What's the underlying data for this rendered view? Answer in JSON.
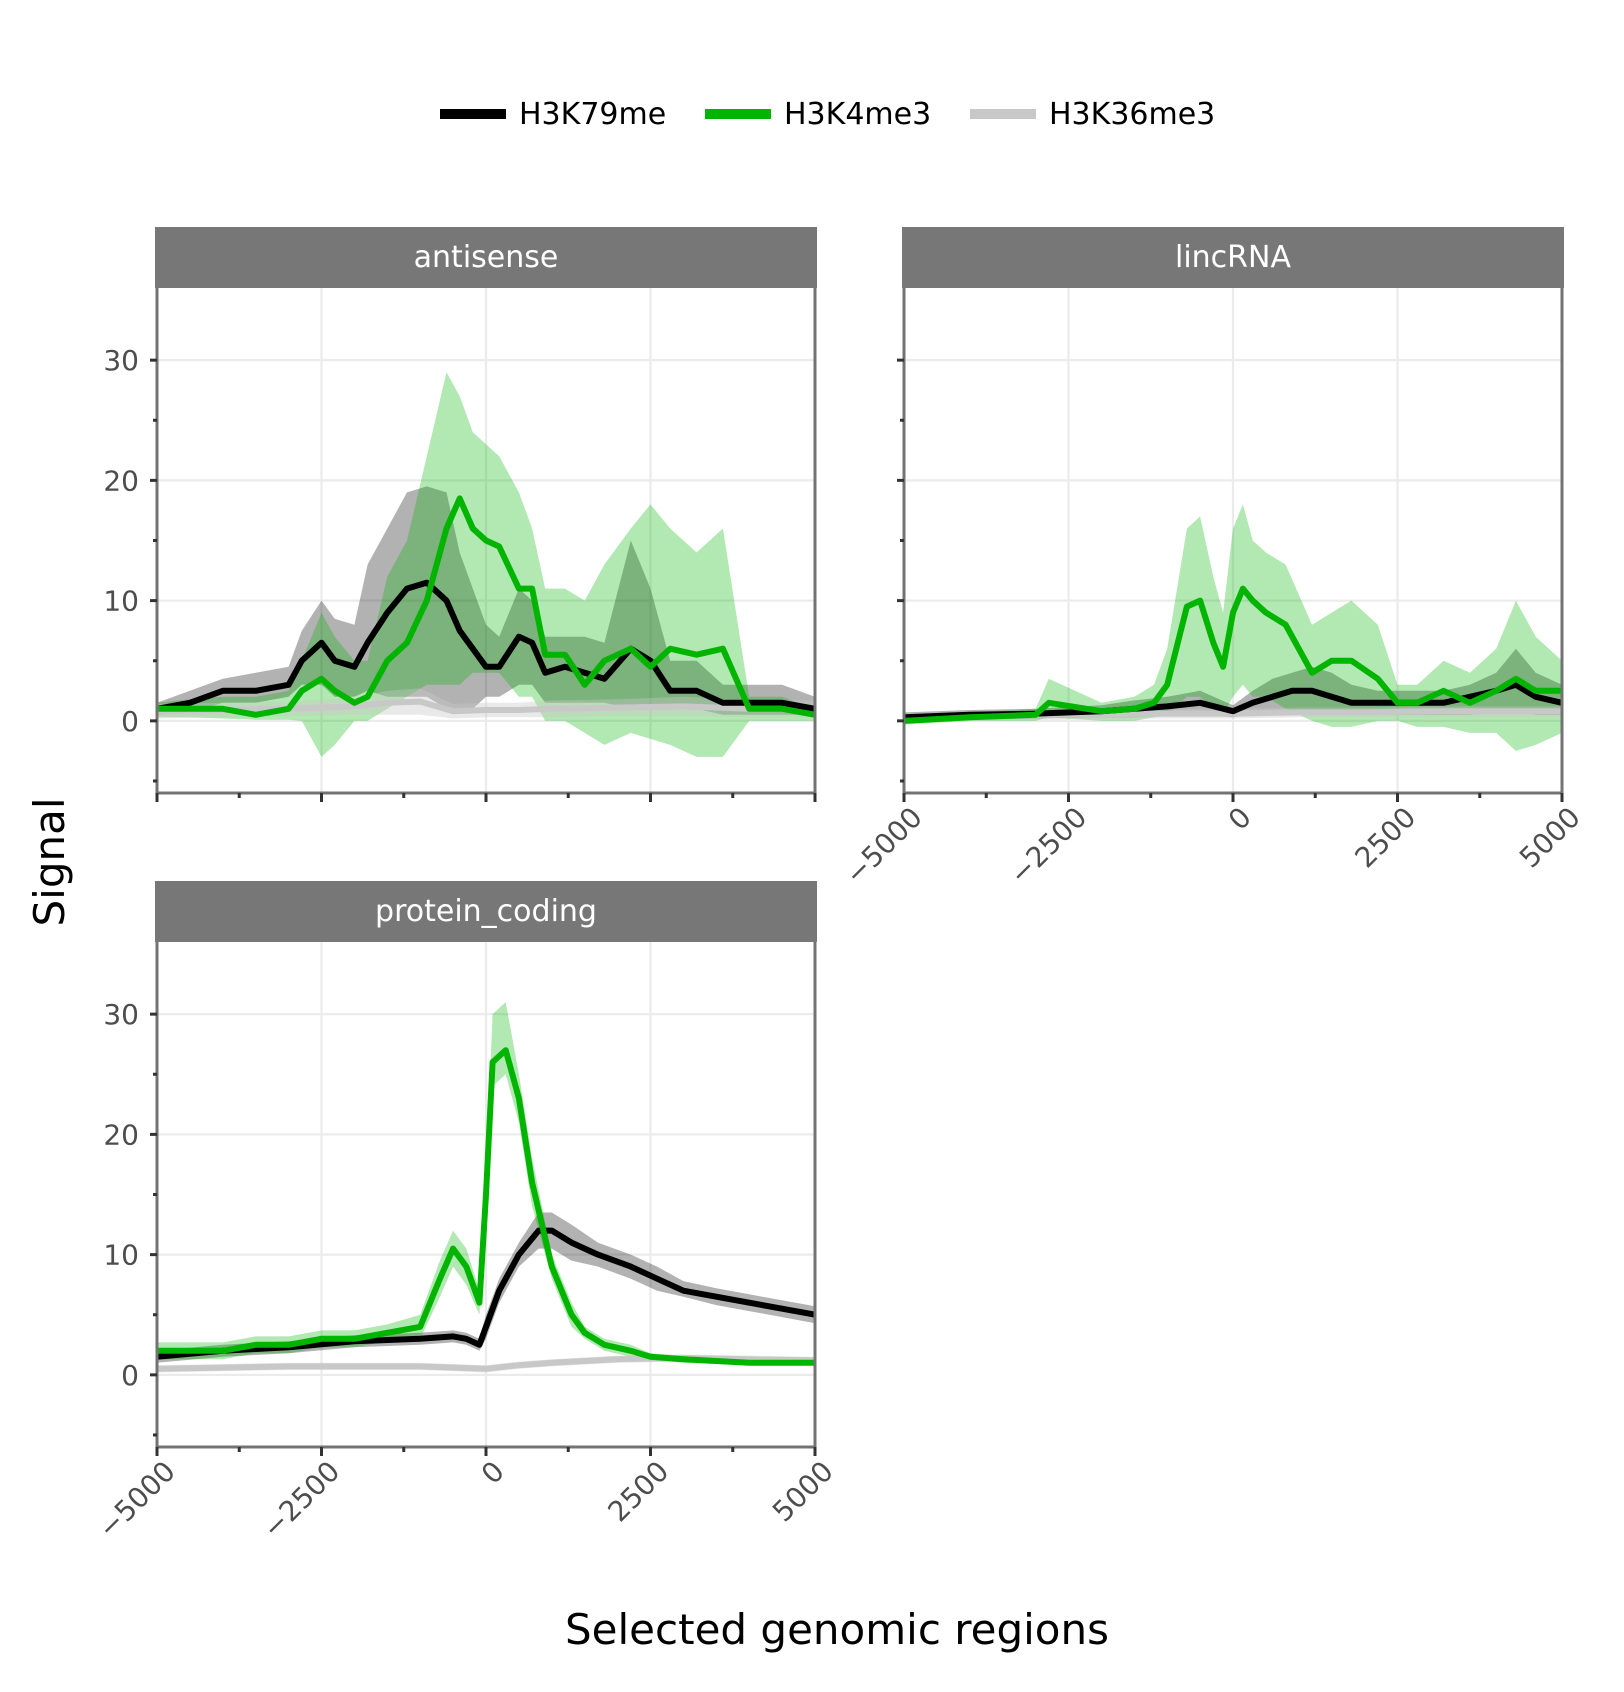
{
  "chart_data": {
    "type": "line",
    "title": "",
    "xlabel": "Selected genomic regions",
    "ylabel": "Signal",
    "xlim": [
      -5000,
      5000
    ],
    "ylim": [
      -6,
      36
    ],
    "x_ticks": [
      -5000,
      -2500,
      0,
      2500,
      5000
    ],
    "x_minor_ticks": [
      -3750,
      -1250,
      1250,
      3750
    ],
    "x_tick_labels": [
      "−5000",
      "−2500",
      "0",
      "2500",
      "5000"
    ],
    "y_ticks": [
      0,
      10,
      20,
      30
    ],
    "y_minor_ticks": [
      -5,
      5,
      15,
      25
    ],
    "y_tick_labels": [
      "0",
      "10",
      "20",
      "30"
    ],
    "grid": true,
    "legend": {
      "position": "top",
      "entries": [
        {
          "name": "H3K79me",
          "color": "#000000"
        },
        {
          "name": "H3K4me3",
          "color": "#00b400"
        },
        {
          "name": "H3K36me3",
          "color": "#c8c8c8"
        }
      ]
    },
    "series_colors": {
      "H3K79me": {
        "line": "#000000",
        "band": "#000000",
        "band_opacity": 0.3
      },
      "H3K4me3": {
        "line": "#00b400",
        "band": "#00b400",
        "band_opacity": 0.3
      },
      "H3K36me3": {
        "line": "#c8c8c8",
        "band": "#c8c8c8",
        "band_opacity": 0.4
      }
    },
    "panels": [
      {
        "name": "antisense",
        "series": [
          {
            "name": "H3K79me",
            "x": [
              -5000,
              -4500,
              -4000,
              -3500,
              -3000,
              -2800,
              -2500,
              -2300,
              -2000,
              -1800,
              -1500,
              -1200,
              -900,
              -600,
              -400,
              -200,
              0,
              200,
              500,
              700,
              900,
              1200,
              1500,
              1800,
              2200,
              2500,
              2800,
              3200,
              3600,
              4000,
              4500,
              5000
            ],
            "values": [
              1,
              1.5,
              2.5,
              2.5,
              3,
              5,
              6.5,
              5,
              4.5,
              6.5,
              9,
              11,
              11.5,
              10,
              7.5,
              6,
              4.5,
              4.5,
              7,
              6.5,
              4,
              4.5,
              4,
              3.5,
              6,
              5,
              2.5,
              2.5,
              1.5,
              1.5,
              1.5,
              1
            ],
            "lower": [
              0.5,
              0.7,
              1.5,
              1.5,
              2,
              3,
              3,
              2,
              2,
              2.5,
              2,
              2,
              2,
              1,
              1,
              1,
              2,
              2,
              3,
              3,
              1.5,
              1.5,
              1.5,
              1.5,
              1,
              1,
              1,
              1,
              0.5,
              0.5,
              0.5,
              0.5
            ],
            "upper": [
              1.5,
              2.5,
              3.5,
              4,
              4.5,
              7.5,
              10,
              8.5,
              8,
              13,
              16,
              19,
              19.5,
              19,
              14,
              11,
              8,
              7,
              11,
              10,
              7,
              7,
              7,
              6.5,
              15,
              11,
              5,
              5,
              3,
              3,
              3,
              2
            ]
          },
          {
            "name": "H3K4me3",
            "x": [
              -5000,
              -4500,
              -4000,
              -3500,
              -3000,
              -2800,
              -2500,
              -2300,
              -2000,
              -1800,
              -1500,
              -1200,
              -900,
              -600,
              -400,
              -200,
              0,
              200,
              500,
              700,
              900,
              1200,
              1500,
              1800,
              2200,
              2500,
              2800,
              3200,
              3600,
              4000,
              4500,
              5000
            ],
            "values": [
              1,
              1,
              1,
              0.5,
              1,
              2.5,
              3.5,
              2.5,
              1.5,
              2,
              5,
              6.5,
              10,
              16,
              18.5,
              16,
              15,
              14.5,
              11,
              11,
              5.5,
              5.5,
              3,
              5,
              6,
              4.5,
              6,
              5.5,
              6,
              1,
              1,
              0.5
            ],
            "lower": [
              0.3,
              0.3,
              0.2,
              0.1,
              0.1,
              0,
              -3,
              -2,
              0,
              0,
              1,
              2,
              3,
              3,
              3,
              4,
              4,
              4,
              2,
              2,
              0,
              0,
              -1,
              -2,
              -1,
              -1.5,
              -2,
              -3,
              -3,
              0,
              0,
              0
            ],
            "upper": [
              1.5,
              1.8,
              2,
              2,
              2.5,
              5,
              9,
              7,
              5,
              5,
              12,
              15,
              22,
              29,
              27,
              24,
              23,
              22,
              19,
              16,
              11,
              11,
              10,
              13,
              16,
              18,
              16,
              14,
              16,
              2,
              2,
              1
            ]
          },
          {
            "name": "H3K36me3",
            "x": [
              -5000,
              -4000,
              -3000,
              -2000,
              -1500,
              -1000,
              -500,
              0,
              500,
              1000,
              2000,
              3000,
              4000,
              5000
            ],
            "values": [
              0.8,
              0.9,
              1,
              1.2,
              1.5,
              1.6,
              0.8,
              0.9,
              0.9,
              1,
              1.1,
              1.2,
              1,
              1
            ],
            "lower": [
              0.2,
              0.3,
              0.4,
              0.5,
              0.5,
              0.5,
              0.2,
              0.3,
              0.3,
              0.3,
              0.4,
              0.4,
              0.3,
              0.3
            ],
            "upper": [
              1.4,
              1.5,
              1.6,
              1.9,
              2.5,
              2.7,
              1.4,
              1.5,
              1.5,
              1.7,
              1.8,
              2,
              1.7,
              1.7
            ]
          }
        ]
      },
      {
        "name": "lincRNA",
        "series": [
          {
            "name": "H3K79me",
            "x": [
              -5000,
              -4000,
              -3000,
              -2000,
              -1500,
              -1000,
              -500,
              0,
              300,
              600,
              900,
              1200,
              1500,
              1800,
              2200,
              2500,
              2800,
              3200,
              3600,
              4000,
              4300,
              4600,
              5000
            ],
            "values": [
              0.3,
              0.5,
              0.6,
              0.8,
              1,
              1.2,
              1.5,
              0.8,
              1.5,
              2,
              2.5,
              2.5,
              2,
              1.5,
              1.5,
              1.5,
              1.5,
              1.5,
              2,
              2.5,
              3,
              2,
              1.5
            ],
            "lower": [
              0,
              0.1,
              0.2,
              0.3,
              0.3,
              0.4,
              0.5,
              0.3,
              0.5,
              0.5,
              0.8,
              0.8,
              0.5,
              0.5,
              0.5,
              0.5,
              0.5,
              0.5,
              0.5,
              0.8,
              1,
              0.5,
              0.5
            ],
            "upper": [
              0.7,
              0.9,
              1,
              1.3,
              1.7,
              2,
              2.5,
              1.3,
              2.5,
              3.5,
              4,
              4.5,
              4,
              3,
              2.5,
              2.5,
              2.5,
              2.5,
              3,
              4,
              6,
              4,
              3
            ]
          },
          {
            "name": "H3K4me3",
            "x": [
              -5000,
              -4000,
              -3000,
              -2800,
              -2000,
              -1500,
              -1200,
              -1000,
              -700,
              -500,
              -300,
              -150,
              0,
              150,
              300,
              500,
              800,
              1200,
              1500,
              1800,
              2200,
              2500,
              2800,
              3200,
              3600,
              4000,
              4300,
              4600,
              5000
            ],
            "values": [
              0,
              0.3,
              0.5,
              1.5,
              0.8,
              1,
              1.5,
              3,
              9.5,
              10,
              6.5,
              4.5,
              9,
              11,
              10,
              9,
              8,
              4,
              5,
              5,
              3.5,
              1.5,
              1.5,
              2.5,
              1.5,
              2.5,
              3.5,
              2.5,
              2.5
            ],
            "lower": [
              -0.3,
              0,
              0,
              0.3,
              0,
              0,
              0.3,
              0.5,
              2,
              2,
              1,
              0.5,
              2,
              3,
              2,
              2,
              1,
              0,
              -0.5,
              -0.5,
              0,
              0,
              -0.5,
              -0.5,
              -1,
              -1,
              -2.5,
              -2,
              -1
            ],
            "upper": [
              0.3,
              0.7,
              1,
              3.5,
              1.5,
              2,
              3,
              6,
              16,
              17,
              12,
              9,
              16,
              18,
              15,
              14,
              13,
              8,
              9,
              10,
              8,
              3,
              3,
              5,
              4,
              6,
              10,
              7,
              5
            ]
          },
          {
            "name": "H3K36me3",
            "x": [
              -5000,
              -3000,
              -1000,
              0,
              1000,
              2000,
              3000,
              4000,
              5000
            ],
            "values": [
              0.3,
              0.5,
              0.6,
              0.6,
              0.7,
              0.7,
              0.8,
              0.8,
              0.8
            ],
            "lower": [
              0,
              0.1,
              0.2,
              0.2,
              0.3,
              0.3,
              0.3,
              0.3,
              0.3
            ],
            "upper": [
              0.6,
              0.9,
              1,
              1,
              1.1,
              1.1,
              1.2,
              1.2,
              1.2
            ]
          }
        ]
      },
      {
        "name": "protein_coding",
        "series": [
          {
            "name": "H3K79me",
            "x": [
              -5000,
              -4000,
              -3000,
              -2000,
              -1000,
              -500,
              -300,
              -100,
              0,
              200,
              500,
              800,
              1000,
              1300,
              1700,
              2200,
              2600,
              3000,
              3500,
              4000,
              4500,
              5000
            ],
            "values": [
              1.5,
              2,
              2.3,
              2.8,
              3,
              3.2,
              3,
              2.5,
              4,
              7,
              10,
              12,
              12,
              11,
              10,
              9,
              8,
              7,
              6.5,
              6,
              5.5,
              5
            ],
            "lower": [
              1,
              1.5,
              1.8,
              2.3,
              2.5,
              2.7,
              2.5,
              2,
              3,
              6,
              9,
              10.5,
              10.5,
              9.5,
              9,
              8,
              7,
              6.5,
              5.8,
              5.3,
              4.8,
              4.3
            ],
            "upper": [
              2,
              2.5,
              2.8,
              3.3,
              3.5,
              3.7,
              3.5,
              3,
              5,
              8,
              11,
              13.5,
              13.5,
              12.5,
              11,
              10,
              9,
              7.8,
              7.2,
              6.7,
              6.2,
              5.7
            ]
          },
          {
            "name": "H3K4me3",
            "x": [
              -5000,
              -4000,
              -3500,
              -3000,
              -2500,
              -2000,
              -1500,
              -1000,
              -700,
              -500,
              -300,
              -100,
              0,
              100,
              300,
              500,
              700,
              1000,
              1300,
              1500,
              1800,
              2200,
              2500,
              3000,
              4000,
              5000
            ],
            "values": [
              2,
              2,
              2.5,
              2.5,
              3,
              3,
              3.5,
              4,
              8,
              10.5,
              9,
              6,
              15,
              26,
              27,
              23,
              16,
              9,
              5,
              3.5,
              2.5,
              2,
              1.5,
              1.3,
              1,
              1
            ],
            "lower": [
              1.3,
              1.3,
              1.8,
              1.8,
              2.3,
              2.3,
              2.8,
              3,
              6.5,
              9,
              7.5,
              5,
              13,
              24,
              25,
              21,
              14,
              8,
              4,
              3,
              2,
              1.5,
              1.2,
              1,
              0.8,
              0.8
            ],
            "upper": [
              2.7,
              2.7,
              3.2,
              3.2,
              3.7,
              3.7,
              4.2,
              5,
              9.5,
              12,
              10.5,
              7,
              17,
              30,
              31,
              25,
              18,
              10,
              6,
              4,
              3,
              2.5,
              1.8,
              1.6,
              1.3,
              1.3
            ]
          },
          {
            "name": "H3K36me3",
            "x": [
              -5000,
              -4000,
              -3000,
              -2000,
              -1000,
              0,
              500,
              1000,
              2000,
              3000,
              4000,
              5000
            ],
            "values": [
              0.5,
              0.6,
              0.7,
              0.7,
              0.7,
              0.5,
              0.8,
              1,
              1.3,
              1.4,
              1.3,
              1.2
            ],
            "lower": [
              0.2,
              0.3,
              0.4,
              0.4,
              0.4,
              0.2,
              0.5,
              0.7,
              1,
              1.1,
              1,
              0.9
            ],
            "upper": [
              0.8,
              0.9,
              1,
              1,
              1,
              0.8,
              1.1,
              1.3,
              1.6,
              1.7,
              1.6,
              1.5
            ]
          }
        ]
      }
    ]
  }
}
